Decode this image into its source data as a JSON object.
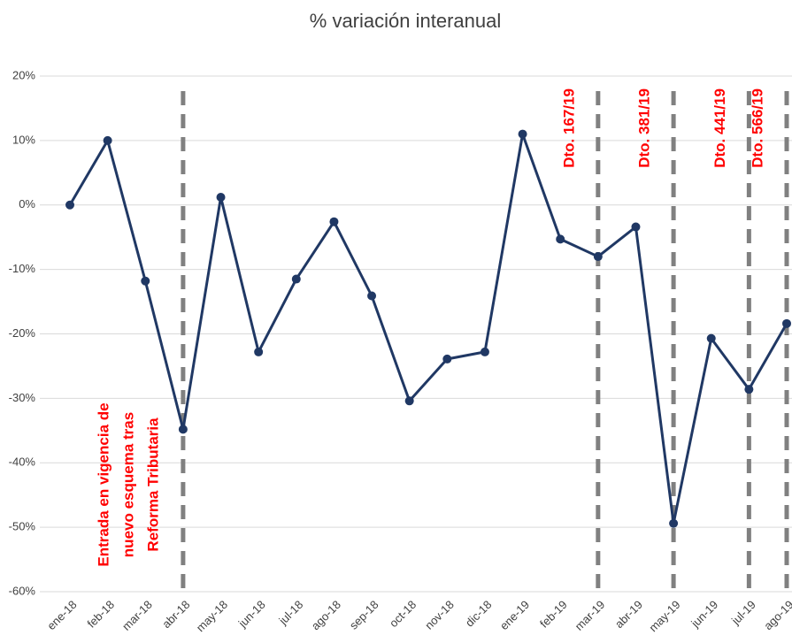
{
  "chart_data": {
    "type": "line",
    "title": "% variación interanual",
    "categories": [
      "ene-18",
      "feb-18",
      "mar-18",
      "abr-18",
      "may-18",
      "jun-18",
      "jul-18",
      "ago-18",
      "sep-18",
      "oct-18",
      "nov-18",
      "dic-18",
      "ene-19",
      "feb-19",
      "mar-19",
      "abr-19",
      "may-19",
      "jun-19",
      "jul-19",
      "ago-19"
    ],
    "series": [
      {
        "name": "% variación interanual",
        "color": "#203864",
        "values": [
          0,
          10,
          -11.8,
          -34.8,
          1.2,
          -22.8,
          -11.5,
          -2.6,
          -14.1,
          -30.4,
          -23.9,
          -22.8,
          11,
          -5.3,
          -8,
          -3.4,
          -49.4,
          -20.7,
          -28.6,
          -18.4
        ]
      }
    ],
    "ylim": [
      -60,
      20
    ],
    "yticks": [
      {
        "value": -60,
        "label": "-60%"
      },
      {
        "value": -50,
        "label": "-50%"
      },
      {
        "value": -40,
        "label": "-40%"
      },
      {
        "value": -30,
        "label": "-30%"
      },
      {
        "value": -20,
        "label": "-20%"
      },
      {
        "value": -10,
        "label": "-10%"
      },
      {
        "value": 0,
        "label": "0%"
      },
      {
        "value": 10,
        "label": "10%"
      },
      {
        "value": 20,
        "label": "20%"
      }
    ],
    "grid": true,
    "annotations": [
      {
        "x": "abr-18",
        "lines": [
          "Entrada en vigencia de",
          "nuevo esquema tras",
          "Reforma Tributaria"
        ]
      },
      {
        "x": "mar-19",
        "lines": [
          "Dto. 167/19"
        ]
      },
      {
        "x": "may-19",
        "lines": [
          "Dto. 381/19"
        ]
      },
      {
        "x": "jul-19",
        "lines": [
          "Dto. 441/19"
        ]
      },
      {
        "x": "ago-19",
        "lines": [
          "Dto. 566/19"
        ]
      }
    ]
  }
}
